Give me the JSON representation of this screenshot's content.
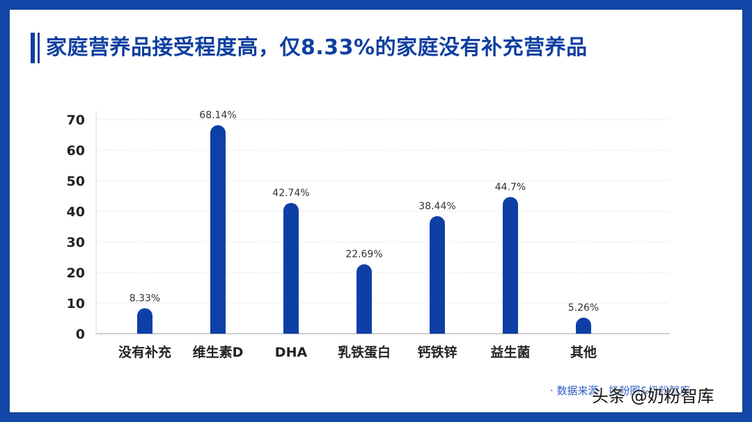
{
  "title": "家庭营养品接受程度高，仅8.33%的家庭没有补充营养品",
  "source": "· 数据来源：奶粉圈&奶粉智库",
  "watermark": "头条 @奶粉智库",
  "colors": {
    "bar": "#0d3fa6",
    "frame": "#1347a8",
    "title": "#0e3fa0",
    "label": "#333333"
  },
  "chart_data": {
    "type": "bar",
    "categories": [
      "没有补充",
      "维生素D",
      "DHA",
      "乳铁蛋白",
      "钙铁锌",
      "益生菌",
      "其他"
    ],
    "values": [
      8.33,
      68.14,
      42.74,
      22.69,
      38.44,
      44.7,
      5.26
    ],
    "data_labels": [
      "8.33%",
      "68.14%",
      "42.74%",
      "22.69%",
      "38.44%",
      "44.7%",
      "5.26%"
    ],
    "yticks": [
      0,
      10,
      20,
      30,
      40,
      50,
      60,
      70
    ],
    "ylim": [
      0,
      70
    ],
    "grid": true,
    "legend": "none"
  }
}
